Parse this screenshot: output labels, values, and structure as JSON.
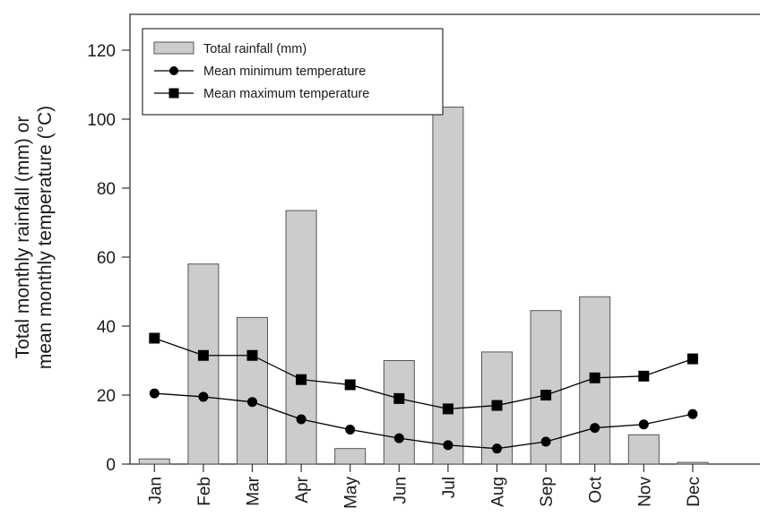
{
  "chart_data": {
    "type": "bar",
    "categories": [
      "Jan",
      "Feb",
      "Mar",
      "Apr",
      "May",
      "Jun",
      "Jul",
      "Aug",
      "Sep",
      "Oct",
      "Nov",
      "Dec"
    ],
    "ylabel": [
      "Total monthly rainfall (mm) or",
      "mean monthly temperature (°C)"
    ],
    "xlabel": "",
    "ylim": [
      0,
      120
    ],
    "yticks": [
      0,
      20,
      40,
      60,
      80,
      100,
      120
    ],
    "series": [
      {
        "name": "Total rainfall (mm)",
        "type": "bar",
        "color": "#cccccc",
        "values": [
          1.5,
          58,
          42.5,
          73.5,
          4.5,
          30,
          103.5,
          32.5,
          44.5,
          48.5,
          8.5,
          0.5
        ]
      },
      {
        "name": "Mean minimum temperature",
        "type": "line",
        "marker": "circle",
        "color": "#000000",
        "values": [
          20.5,
          19.5,
          18,
          13,
          10,
          7.5,
          5.5,
          4.5,
          6.5,
          10.5,
          11.5,
          14.5
        ]
      },
      {
        "name": "Mean maximum temperature",
        "type": "line",
        "marker": "square",
        "color": "#000000",
        "values": [
          36.5,
          31.5,
          31.5,
          24.5,
          23,
          19,
          16,
          17,
          20,
          25,
          25.5,
          30.5
        ]
      }
    ],
    "legend_position": "top-left",
    "grid": false
  }
}
